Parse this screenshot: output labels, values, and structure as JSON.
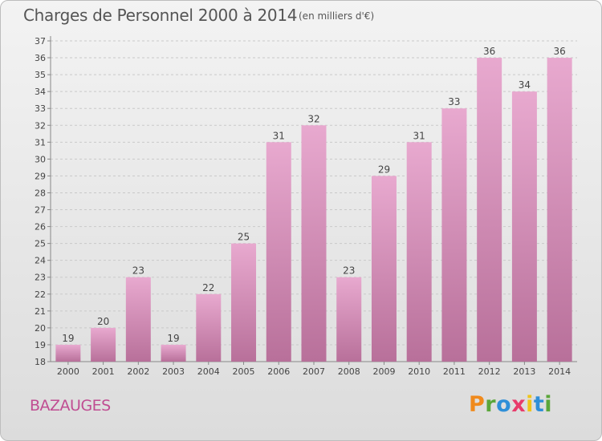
{
  "header": {
    "title": "Charges de Personnel 2000 à 2014",
    "subtitle": "(en milliers d'€)"
  },
  "footer": {
    "town": "BAZAUGES",
    "logo": "Proxiti"
  },
  "colors": {
    "bar": "#c7709f",
    "bar_light": "#e8a9cf",
    "town_text": "#c04d92"
  },
  "chart_data": {
    "type": "bar",
    "title": "Charges de Personnel 2000 à 2014",
    "subtitle": "(en milliers d'€)",
    "categories": [
      "2000",
      "2001",
      "2002",
      "2003",
      "2004",
      "2005",
      "2006",
      "2007",
      "2008",
      "2009",
      "2010",
      "2011",
      "2012",
      "2013",
      "2014"
    ],
    "values": [
      19,
      20,
      23,
      19,
      22,
      25,
      31,
      32,
      23,
      29,
      31,
      33,
      36,
      34,
      36
    ],
    "ylim": [
      18,
      37
    ],
    "yticks": [
      18,
      19,
      20,
      21,
      22,
      23,
      24,
      25,
      26,
      27,
      28,
      29,
      30,
      31,
      32,
      33,
      34,
      35,
      36,
      37
    ],
    "grid": true,
    "data_labels": true
  }
}
